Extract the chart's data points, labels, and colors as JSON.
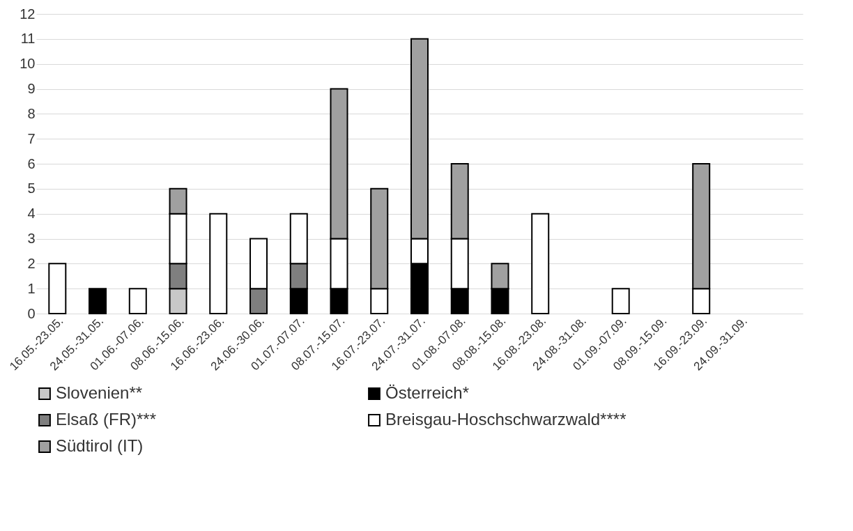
{
  "chart_data": {
    "type": "bar",
    "stacked": true,
    "categories": [
      "16.05.-23.05.",
      "24.05.-31.05.",
      "01.06.-07.06.",
      "08.06.-15.06.",
      "16.06.-23.06.",
      "24.06.-30.06.",
      "01.07.-07.07.",
      "08.07.-15.07.",
      "16.07.-23.07.",
      "24.07.-31.07.",
      "01.08.-07.08.",
      "08.08.-15.08.",
      "16.08.-23.08.",
      "24.08.-31.08.",
      "01.09.-07.09.",
      "08.09.-15.09.",
      "16.09.-23.09.",
      "24.09.-31.09.",
      null
    ],
    "series": [
      {
        "name": "Slovenien**",
        "color": "#c8c8c8",
        "values": [
          0,
          0,
          0,
          1,
          0,
          0,
          0,
          0,
          0,
          0,
          0,
          0,
          0,
          0,
          0,
          0,
          0,
          0,
          0
        ]
      },
      {
        "name": "Österreich*",
        "color": "#000000",
        "values": [
          0,
          1,
          0,
          0,
          0,
          0,
          1,
          1,
          0,
          2,
          1,
          1,
          0,
          0,
          0,
          0,
          0,
          0,
          0
        ]
      },
      {
        "name": "Elsaß (FR)***",
        "color": "#7f7f7f",
        "values": [
          0,
          0,
          0,
          1,
          0,
          1,
          1,
          0,
          0,
          0,
          0,
          0,
          0,
          0,
          0,
          0,
          0,
          0,
          0
        ]
      },
      {
        "name": "Breisgau-Hoschschwarzwald****",
        "color": "#ffffff",
        "values": [
          2,
          0,
          1,
          2,
          4,
          2,
          2,
          2,
          1,
          1,
          2,
          0,
          4,
          0,
          1,
          0,
          1,
          0,
          0
        ]
      },
      {
        "name": "Südtirol (IT)",
        "color": "#a0a0a0",
        "values": [
          0,
          0,
          0,
          1,
          0,
          0,
          0,
          6,
          4,
          8,
          3,
          1,
          0,
          0,
          0,
          0,
          5,
          0,
          0
        ]
      }
    ],
    "ylim": [
      0,
      12
    ],
    "yticks": [
      0,
      1,
      2,
      3,
      4,
      5,
      6,
      7,
      8,
      9,
      10,
      11,
      12
    ],
    "grid": "y",
    "legend": "bottom"
  }
}
